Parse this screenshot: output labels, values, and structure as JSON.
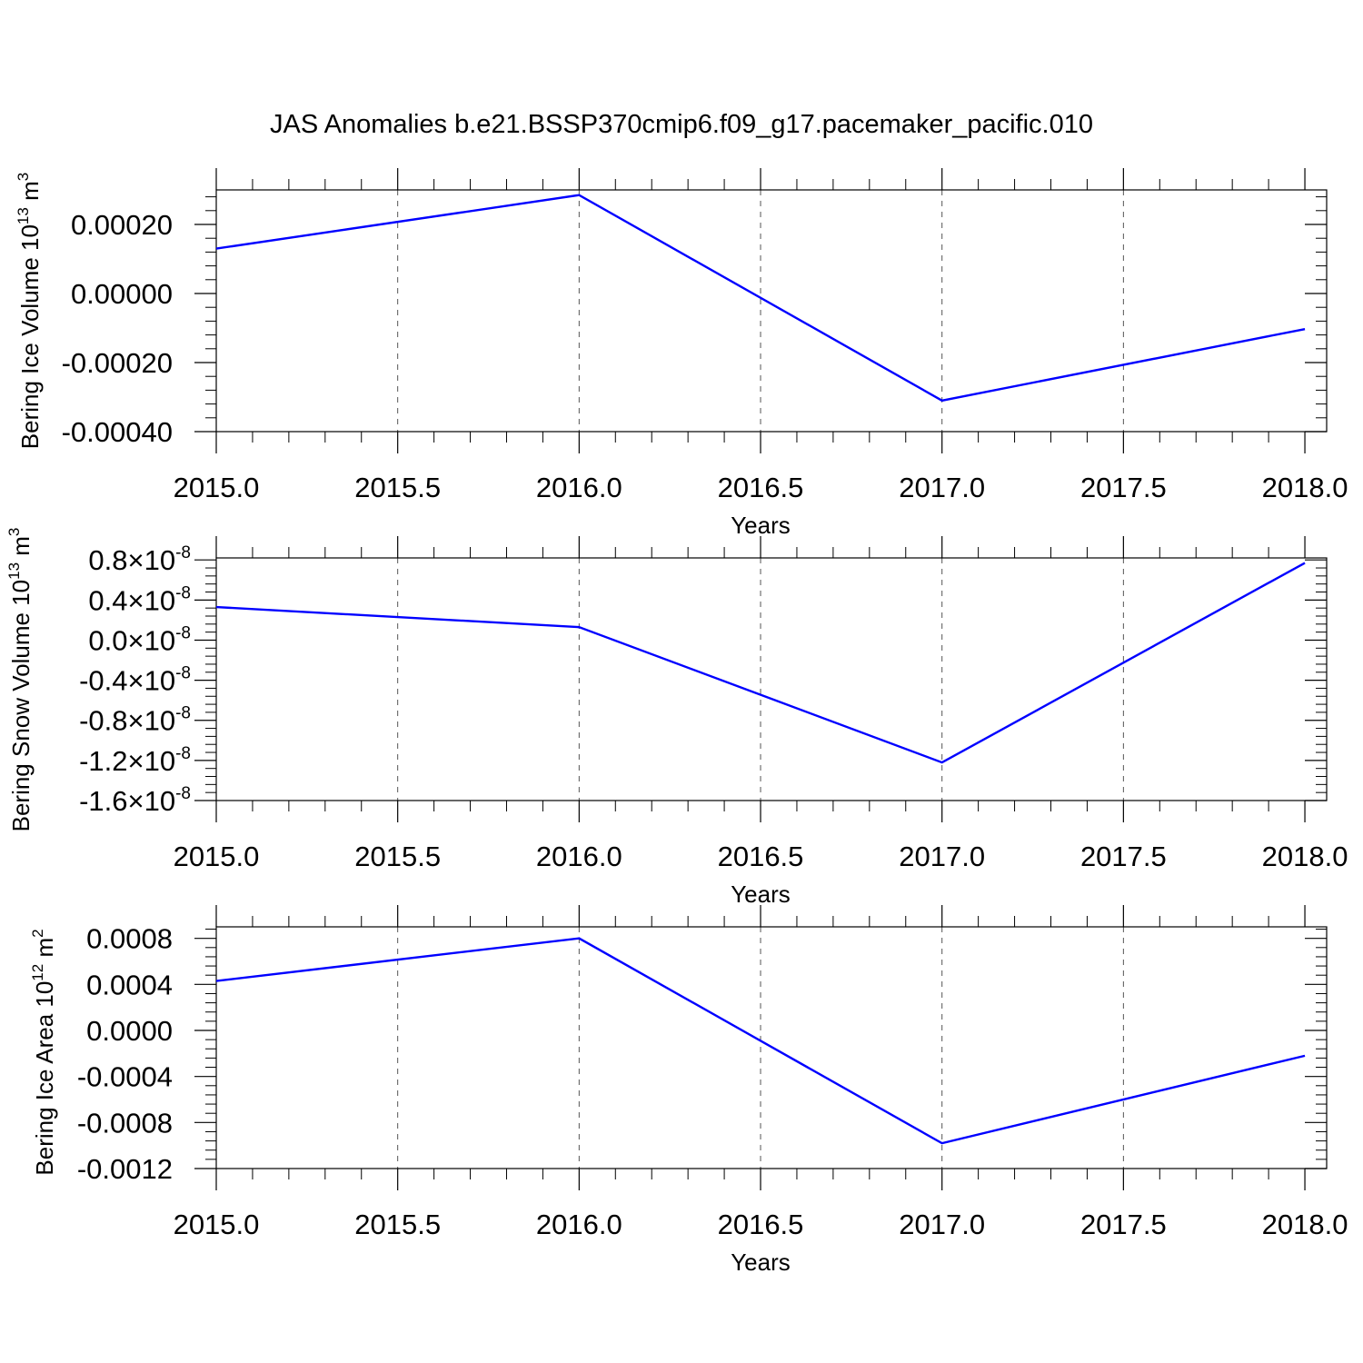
{
  "title": "JAS Anomalies b.e21.BSSP370cmip6.f09_g17.pacemaker_pacific.010",
  "colors": {
    "series": "#0000ff",
    "axes": "#000000",
    "grid": "#555555"
  },
  "chart_data": [
    {
      "type": "line",
      "ylabel": {
        "text": "Bering Ice Volume 10",
        "sup1": "13",
        "unit": " m",
        "sup2": "3"
      },
      "xlabel": "Years",
      "x": [
        2015,
        2016,
        2017,
        2018
      ],
      "series": [
        {
          "values": [
            0.00013,
            0.000285,
            -0.00031,
            -0.000103
          ]
        }
      ],
      "xlim": [
        2015,
        2018.06
      ],
      "ylim": [
        -0.0004,
        0.0003
      ],
      "xticks": [
        {
          "value": 2015.0,
          "label": "2015.0"
        },
        {
          "value": 2015.5,
          "label": "2015.5"
        },
        {
          "value": 2016.0,
          "label": "2016.0"
        },
        {
          "value": 2016.5,
          "label": "2016.5"
        },
        {
          "value": 2017.0,
          "label": "2017.0"
        },
        {
          "value": 2017.5,
          "label": "2017.5"
        },
        {
          "value": 2018.0,
          "label": "2018.0"
        }
      ],
      "yticks": [
        {
          "value": -0.0004,
          "label": "-0.00040"
        },
        {
          "value": -0.0002,
          "label": "-0.00020"
        },
        {
          "value": 0.0,
          "label": "0.00000"
        },
        {
          "value": 0.0002,
          "label": "0.00020"
        }
      ],
      "grid": "vertical dashed"
    },
    {
      "type": "line",
      "ylabel": {
        "text": "Bering Snow Volume 10",
        "sup1": "13",
        "unit": " m",
        "sup2": "3"
      },
      "xlabel": "Years",
      "x": [
        2015,
        2016,
        2017,
        2018
      ],
      "series": [
        {
          "values": [
            3.3e-09,
            1.3e-09,
            -1.22e-08,
            7.7e-09
          ]
        }
      ],
      "xlim": [
        2015,
        2018.06
      ],
      "ylim": [
        -1.6e-08,
        8.2e-09
      ],
      "xticks": [
        {
          "value": 2015.0,
          "label": "2015.0"
        },
        {
          "value": 2015.5,
          "label": "2015.5"
        },
        {
          "value": 2016.0,
          "label": "2016.0"
        },
        {
          "value": 2016.5,
          "label": "2016.5"
        },
        {
          "value": 2017.0,
          "label": "2017.0"
        },
        {
          "value": 2017.5,
          "label": "2017.5"
        },
        {
          "value": 2018.0,
          "label": "2018.0"
        }
      ],
      "yticks": [
        {
          "value": -1.6e-08,
          "label": "-1.6",
          "exp": "10",
          "sup": "-8"
        },
        {
          "value": -1.2e-08,
          "label": "-1.2",
          "exp": "10",
          "sup": "-8"
        },
        {
          "value": -8e-09,
          "label": "-0.8",
          "exp": "10",
          "sup": "-8"
        },
        {
          "value": -4e-09,
          "label": "-0.4",
          "exp": "10",
          "sup": "-8"
        },
        {
          "value": 0.0,
          "label": "0.0",
          "exp": "10",
          "sup": "-8"
        },
        {
          "value": 4e-09,
          "label": "0.4",
          "exp": "10",
          "sup": "-8"
        },
        {
          "value": 8e-09,
          "label": "0.8",
          "exp": "10",
          "sup": "-8"
        }
      ],
      "grid": "vertical dashed"
    },
    {
      "type": "line",
      "ylabel": {
        "text": "Bering Ice Area 10",
        "sup1": "12",
        "unit": " m",
        "sup2": "2"
      },
      "xlabel": "Years",
      "x": [
        2015,
        2016,
        2017,
        2018
      ],
      "series": [
        {
          "values": [
            0.00043,
            0.0008,
            -0.00098,
            -0.00022
          ]
        }
      ],
      "xlim": [
        2015,
        2018.06
      ],
      "ylim": [
        -0.0012,
        0.0009
      ],
      "xticks": [
        {
          "value": 2015.0,
          "label": "2015.0"
        },
        {
          "value": 2015.5,
          "label": "2015.5"
        },
        {
          "value": 2016.0,
          "label": "2016.0"
        },
        {
          "value": 2016.5,
          "label": "2016.5"
        },
        {
          "value": 2017.0,
          "label": "2017.0"
        },
        {
          "value": 2017.5,
          "label": "2017.5"
        },
        {
          "value": 2018.0,
          "label": "2018.0"
        }
      ],
      "yticks": [
        {
          "value": -0.0012,
          "label": "-0.0012"
        },
        {
          "value": -0.0008,
          "label": "-0.0008"
        },
        {
          "value": -0.0004,
          "label": "-0.0004"
        },
        {
          "value": 0.0,
          "label": "0.0000"
        },
        {
          "value": 0.0004,
          "label": "0.0004"
        },
        {
          "value": 0.0008,
          "label": "0.0008"
        }
      ],
      "grid": "vertical dashed"
    }
  ]
}
